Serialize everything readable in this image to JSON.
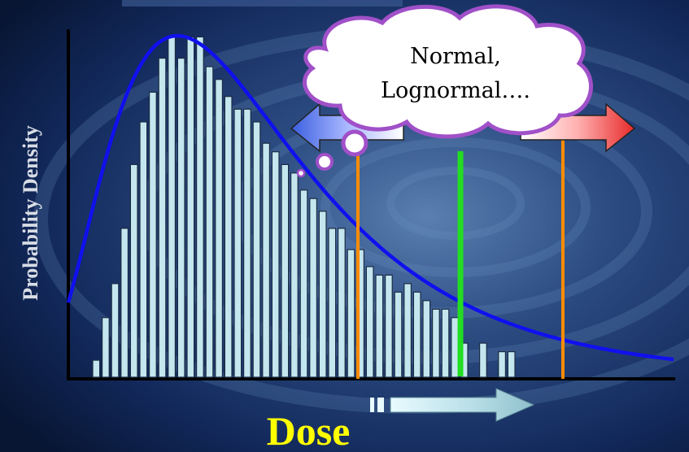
{
  "chart_data": {
    "type": "bar",
    "ylabel": "Probability Density",
    "xlabel": "Dose",
    "annotation": [
      "Normal,",
      "Lognormal…."
    ],
    "values": [
      4,
      14,
      22,
      35,
      50,
      60,
      67,
      75,
      80,
      75,
      80,
      80,
      73,
      70,
      66,
      63,
      63,
      60,
      55,
      53,
      50,
      48,
      44,
      42,
      39,
      35,
      35,
      30,
      30,
      26,
      24,
      24,
      20,
      22,
      20,
      18,
      16,
      16,
      14,
      8,
      0,
      8,
      0,
      6,
      6
    ],
    "fit_curve": "lognormal",
    "ylim": [
      0,
      86
    ],
    "colors": {
      "bar_fill": "#c4e6ee",
      "curve": "#1010ee",
      "threshold_orange": "#ff8c00",
      "threshold_green": "#22dd22",
      "axis": "#000000",
      "arrow_blue": "#4a6fe0",
      "arrow_red": "#e8383a",
      "cloud_border": "#a050c8"
    }
  }
}
